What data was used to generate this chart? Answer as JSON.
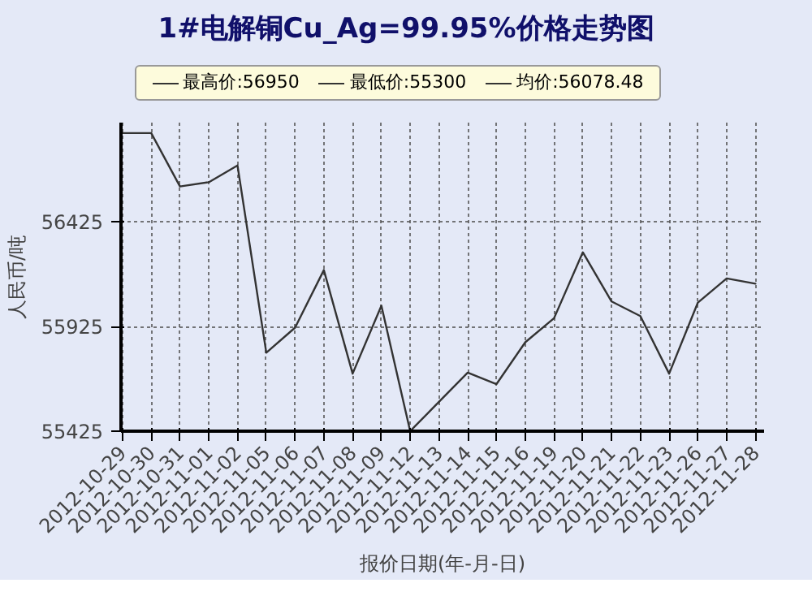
{
  "chart_data": {
    "type": "line",
    "title": "1#电解铜Cu_Ag=99.95%价格走势图",
    "xlabel": "报价日期(年-月-日)",
    "ylabel": "人民币/吨",
    "annotations": [
      "最高价:56950",
      "最低价:55300",
      "均价:56078.48"
    ],
    "categories": [
      "2012-10-29",
      "2012-10-30",
      "2012-10-31",
      "2012-11-01",
      "2012-11-02",
      "2012-11-05",
      "2012-11-06",
      "2012-11-07",
      "2012-11-08",
      "2012-11-09",
      "2012-11-12",
      "2012-11-13",
      "2012-11-14",
      "2012-11-15",
      "2012-11-16",
      "2012-11-19",
      "2012-11-20",
      "2012-11-21",
      "2012-11-22",
      "2012-11-23",
      "2012-11-26",
      "2012-11-27",
      "2012-11-28"
    ],
    "series": [
      {
        "color": "#333333",
        "values": [
          56850,
          56850,
          56595,
          56615,
          56695,
          55800,
          55920,
          56195,
          55700,
          56025,
          55425,
          55565,
          55705,
          55650,
          55850,
          55965,
          56280,
          56045,
          55975,
          55700,
          56040,
          56155,
          56130
        ]
      }
    ],
    "ylim": [
      55425,
      56900
    ],
    "yticks": [
      55425,
      55925,
      56425
    ],
    "grid": true,
    "marker": "none",
    "line_style": "solid"
  }
}
